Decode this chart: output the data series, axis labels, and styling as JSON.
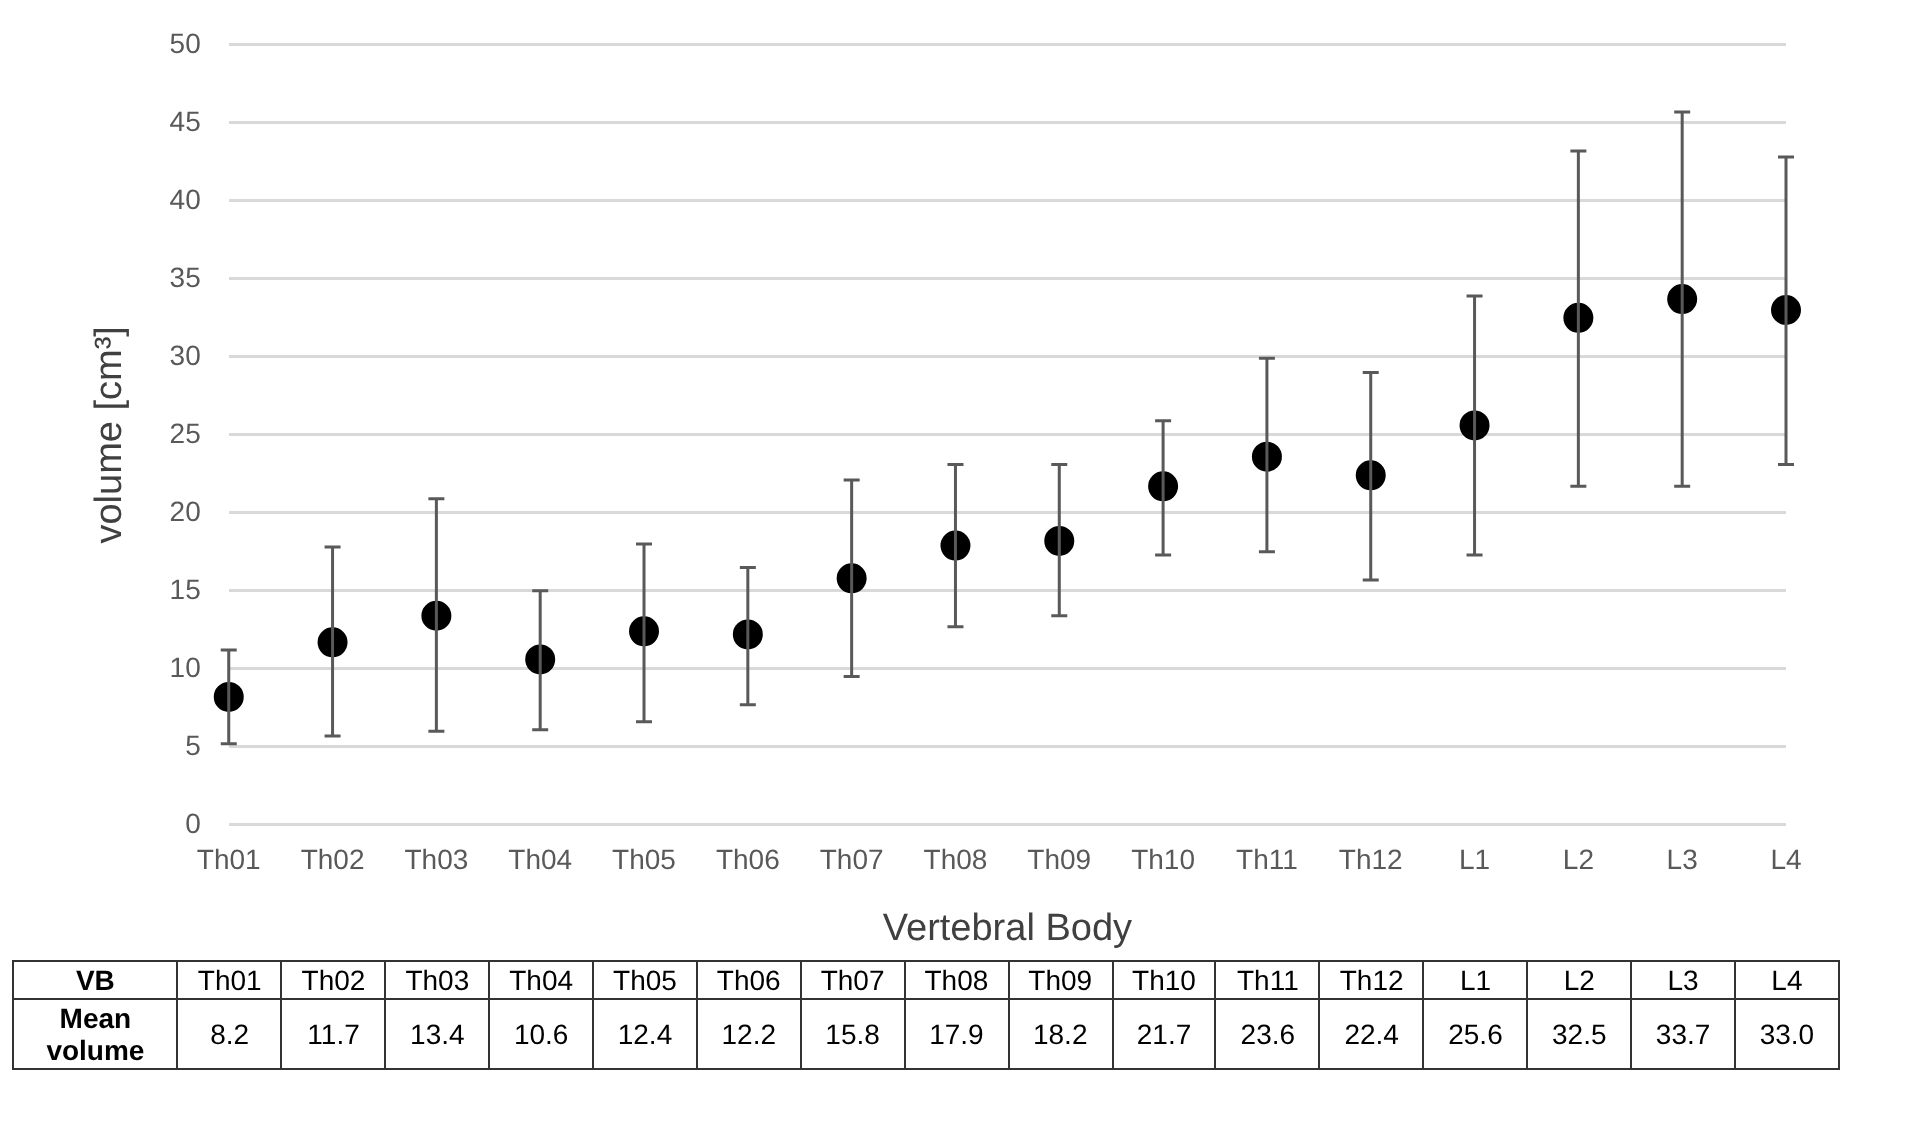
{
  "chart_data": {
    "type": "scatter",
    "xlabel": "Vertebral Body",
    "ylabel": "volume [cm³]",
    "categories": [
      "Th01",
      "Th02",
      "Th03",
      "Th04",
      "Th05",
      "Th06",
      "Th07",
      "Th08",
      "Th09",
      "Th10",
      "Th11",
      "Th12",
      "L1",
      "L2",
      "L3",
      "L4"
    ],
    "values": [
      8.2,
      11.7,
      13.4,
      10.6,
      12.4,
      12.2,
      15.8,
      17.9,
      18.2,
      21.7,
      23.6,
      22.4,
      25.6,
      32.5,
      33.7,
      33.0
    ],
    "value_labels": [
      "8.2",
      "11.7",
      "13.4",
      "10.6",
      "12.4",
      "12.2",
      "15.8",
      "17.9",
      "18.2",
      "21.7",
      "23.6",
      "22.4",
      "25.6",
      "32.5",
      "33.7",
      "33.0"
    ],
    "errors": [
      [
        5.2,
        11.2
      ],
      [
        5.7,
        17.8
      ],
      [
        6.0,
        20.9
      ],
      [
        6.1,
        15.0
      ],
      [
        6.6,
        18.0
      ],
      [
        7.7,
        16.5
      ],
      [
        9.5,
        22.1
      ],
      [
        12.7,
        23.1
      ],
      [
        13.4,
        23.1
      ],
      [
        17.3,
        25.9
      ],
      [
        17.5,
        29.9
      ],
      [
        15.7,
        29.0
      ],
      [
        17.3,
        33.9
      ],
      [
        21.7,
        43.2
      ],
      [
        21.7,
        45.7
      ],
      [
        23.1,
        42.8
      ]
    ],
    "color": "#000000",
    "marker": "circle",
    "grid": "y",
    "ylim": [
      0,
      50
    ],
    "yticks": [
      0,
      5,
      10,
      15,
      20,
      25,
      30,
      35,
      40,
      45,
      50
    ],
    "annotations": [
      "VB",
      "Mean volume"
    ],
    "legend": false
  }
}
